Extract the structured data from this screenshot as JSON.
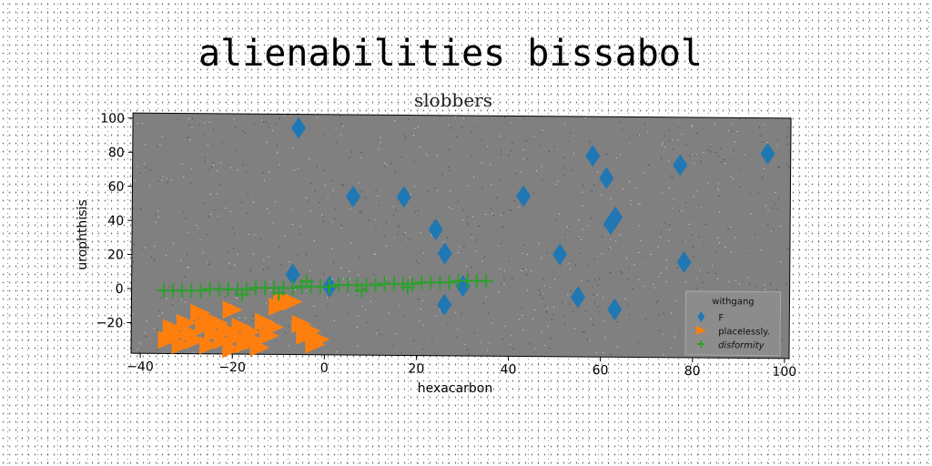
{
  "chart_data": {
    "type": "scatter",
    "title": "alienabilities bissabol",
    "subtitle": "slobbers",
    "xlabel": "hexacarbon",
    "ylabel": "urophthisis",
    "xlim": [
      -42,
      101
    ],
    "ylim": [
      -38,
      103
    ],
    "xticks": [
      -40,
      -20,
      0,
      20,
      40,
      60,
      80,
      100
    ],
    "yticks": [
      -20,
      0,
      20,
      40,
      60,
      80,
      100
    ],
    "grid": false,
    "legend_position": "lower-right",
    "legend_title": "withgang",
    "colors": {
      "plot_bg": "#808080",
      "F": "#1f77b4",
      "placelessly": "#ff7f0e",
      "disformity": "#2ca02c"
    },
    "series": [
      {
        "name": "F",
        "marker": "diamond",
        "points": [
          [
            -6,
            95
          ],
          [
            6,
            55
          ],
          [
            17,
            55
          ],
          [
            24,
            36
          ],
          [
            26,
            22
          ],
          [
            -7,
            9
          ],
          [
            1,
            2
          ],
          [
            26,
            -8
          ],
          [
            30,
            3
          ],
          [
            43,
            56
          ],
          [
            51,
            22
          ],
          [
            55,
            -3
          ],
          [
            58,
            80
          ],
          [
            61,
            67
          ],
          [
            62,
            40
          ],
          [
            63,
            44
          ],
          [
            63,
            -10
          ],
          [
            77,
            75
          ],
          [
            78,
            18
          ],
          [
            96,
            82
          ]
        ]
      },
      {
        "name": "placelessly.",
        "marker": "triangle-right",
        "points": [
          [
            -34,
            -30
          ],
          [
            -33,
            -23
          ],
          [
            -32,
            -27
          ],
          [
            -31,
            -33
          ],
          [
            -30,
            -20
          ],
          [
            -29,
            -26
          ],
          [
            -28,
            -30
          ],
          [
            -27,
            -14
          ],
          [
            -26,
            -22
          ],
          [
            -25,
            -33
          ],
          [
            -24,
            -26
          ],
          [
            -23,
            -20
          ],
          [
            -22,
            -30
          ],
          [
            -21,
            -24
          ],
          [
            -20,
            -35
          ],
          [
            -19,
            -28
          ],
          [
            -18,
            -22
          ],
          [
            -17,
            -32
          ],
          [
            -16,
            -25
          ],
          [
            -15,
            -30
          ],
          [
            -14,
            -34
          ],
          [
            -13,
            -19
          ],
          [
            -12,
            -27
          ],
          [
            -11,
            -22
          ],
          [
            -10,
            -10
          ],
          [
            -9,
            -6
          ],
          [
            -7,
            -7
          ],
          [
            -5,
            -20
          ],
          [
            -4,
            -27
          ],
          [
            -3,
            -24
          ],
          [
            -2,
            -32
          ],
          [
            -1,
            -29
          ],
          [
            -20,
            -12
          ],
          [
            -25,
            -18
          ]
        ]
      },
      {
        "name": "disformity",
        "marker": "plus",
        "points": [
          [
            -35,
            -1
          ],
          [
            -33,
            -1
          ],
          [
            -31,
            -1
          ],
          [
            -29,
            -1
          ],
          [
            -27,
            -1
          ],
          [
            -25,
            0
          ],
          [
            -23,
            0
          ],
          [
            -21,
            0
          ],
          [
            -19,
            0
          ],
          [
            -17,
            0
          ],
          [
            -15,
            1
          ],
          [
            -13,
            1
          ],
          [
            -11,
            1
          ],
          [
            -9,
            1
          ],
          [
            -7,
            1
          ],
          [
            -5,
            2
          ],
          [
            -3,
            2
          ],
          [
            -1,
            2
          ],
          [
            1,
            2
          ],
          [
            3,
            3
          ],
          [
            5,
            3
          ],
          [
            7,
            3
          ],
          [
            9,
            3
          ],
          [
            11,
            3
          ],
          [
            13,
            4
          ],
          [
            15,
            4
          ],
          [
            17,
            4
          ],
          [
            19,
            4
          ],
          [
            21,
            5
          ],
          [
            23,
            5
          ],
          [
            25,
            5
          ],
          [
            27,
            5
          ],
          [
            29,
            6
          ],
          [
            31,
            6
          ],
          [
            33,
            6
          ],
          [
            35,
            6
          ],
          [
            -18,
            -3
          ],
          [
            -10,
            -2
          ],
          [
            -4,
            5
          ],
          [
            8,
            0
          ],
          [
            18,
            2
          ]
        ]
      }
    ]
  }
}
